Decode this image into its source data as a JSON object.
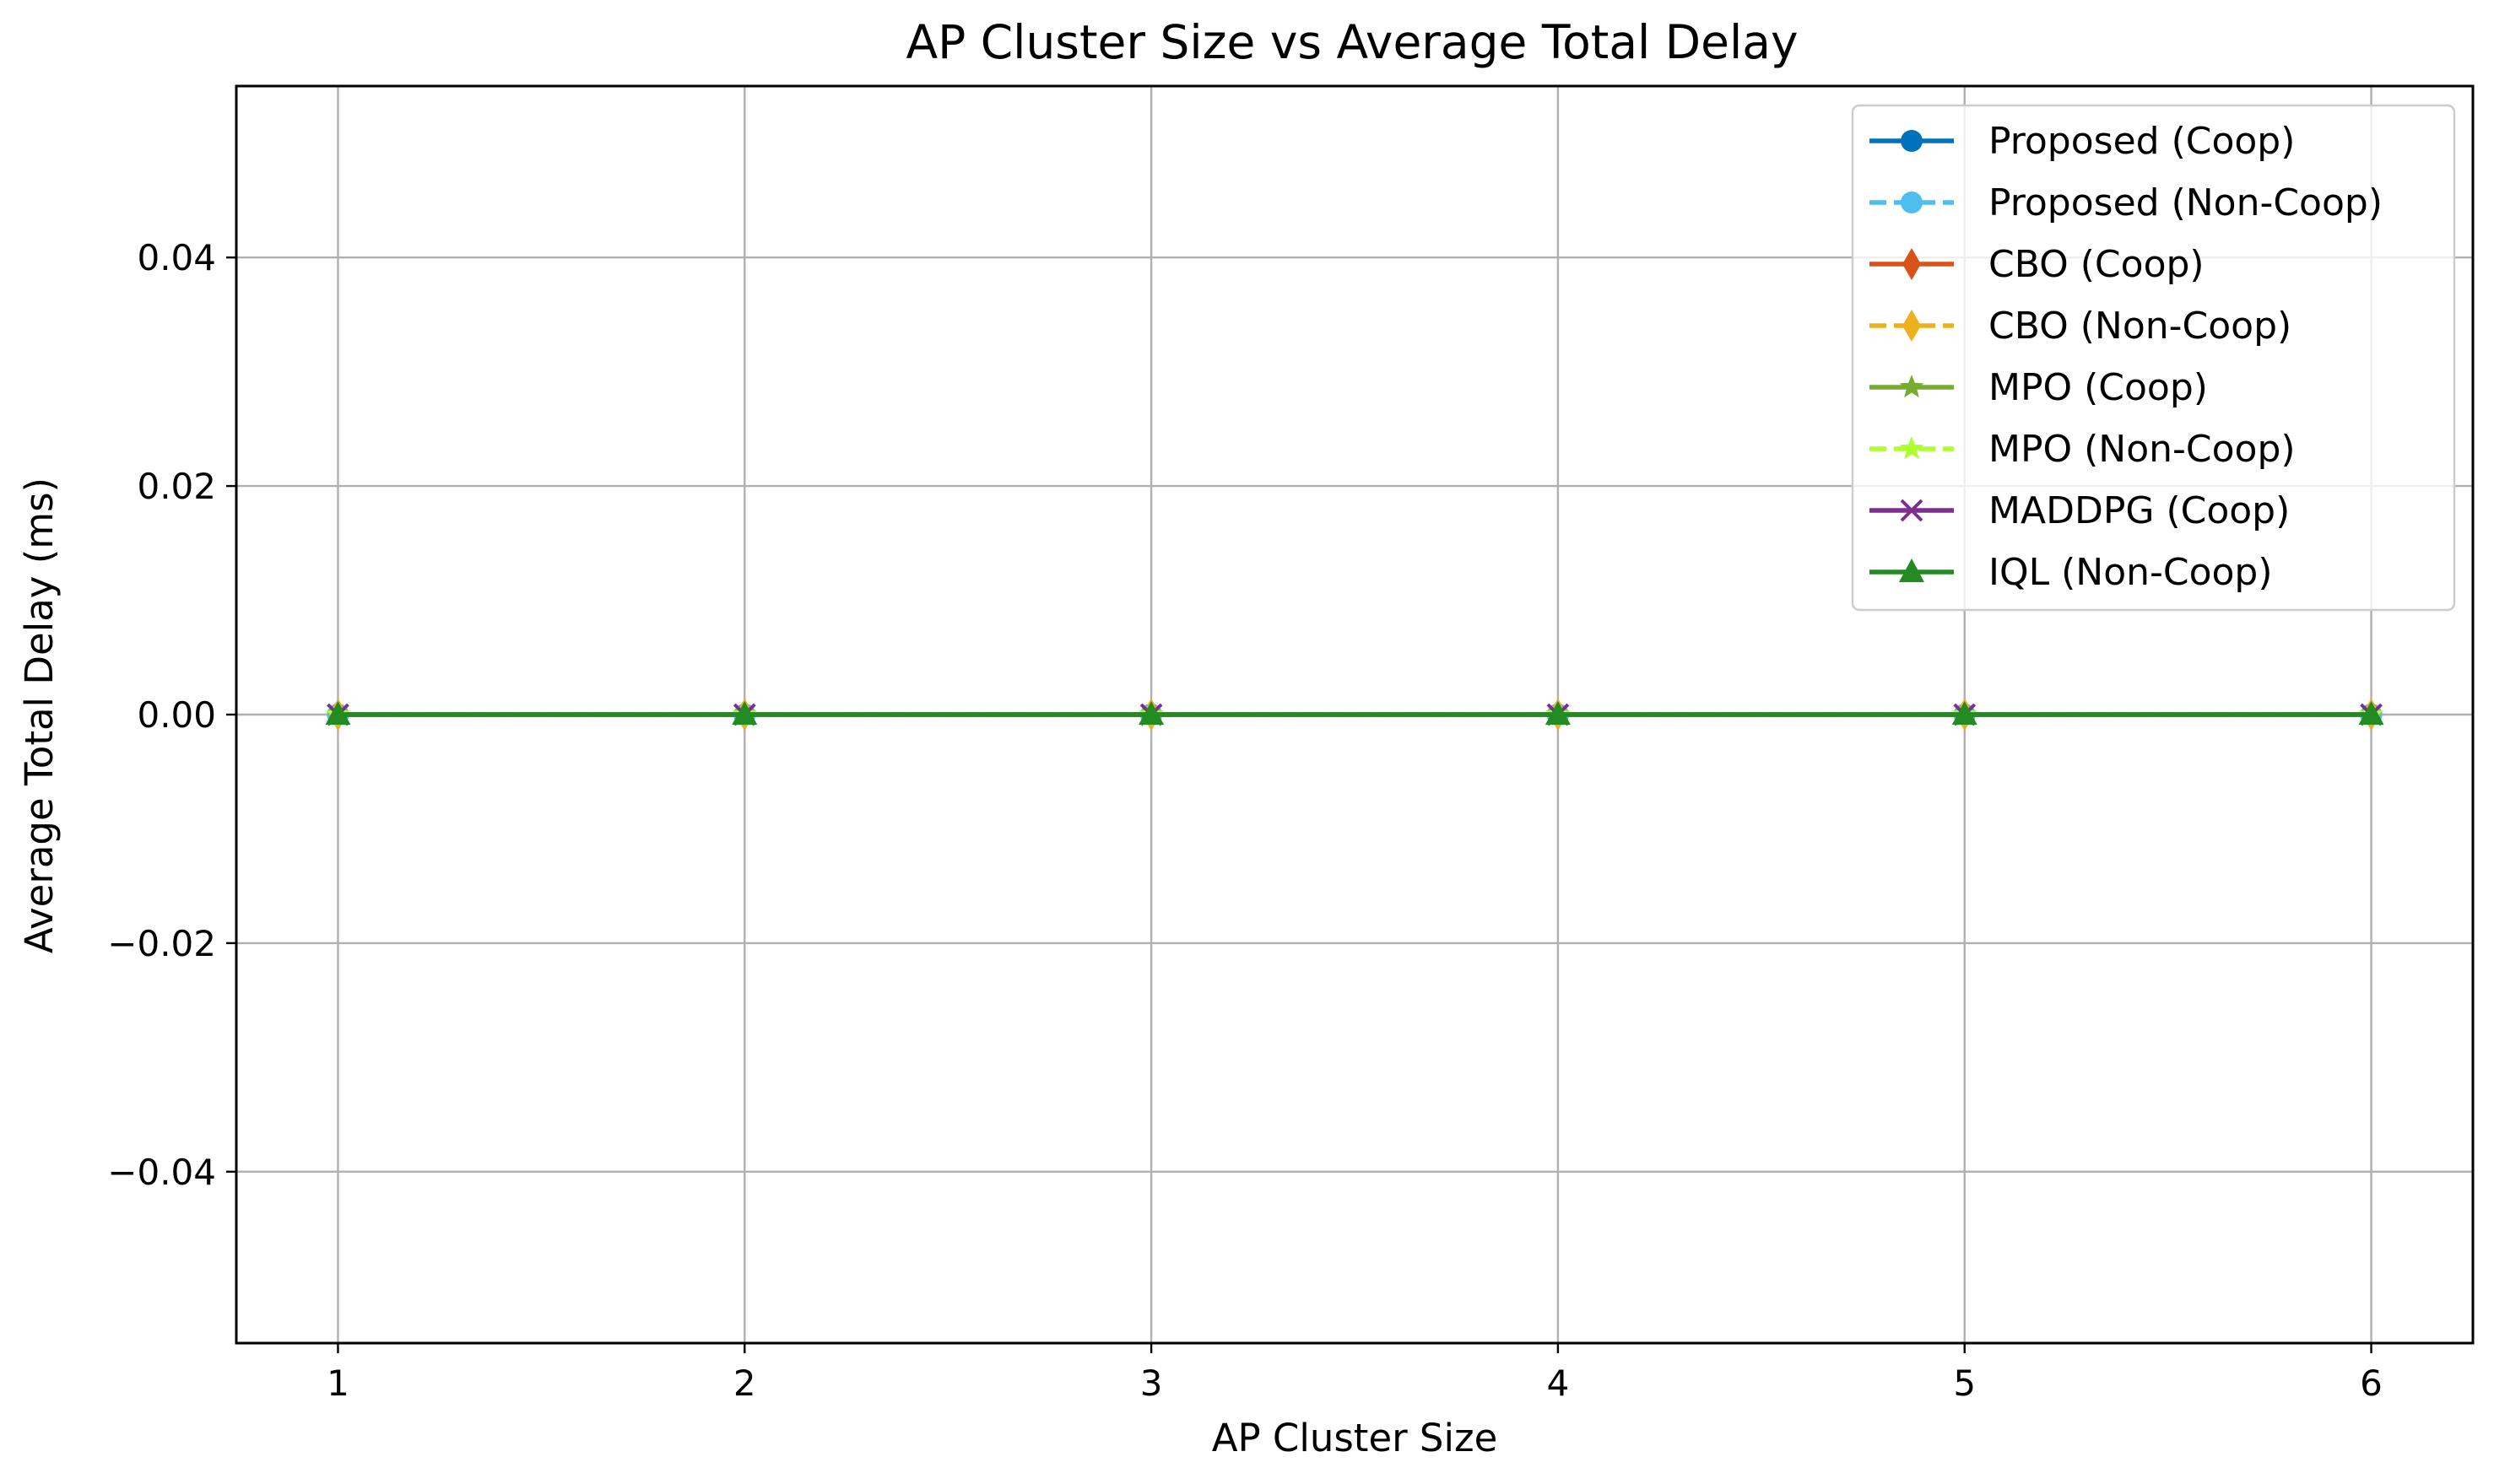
{
  "chart_data": {
    "type": "line",
    "title": "AP Cluster Size vs Average Total Delay",
    "xlabel": "AP Cluster Size",
    "ylabel": "Average Total Delay (ms)",
    "x": [
      1,
      2,
      3,
      4,
      5,
      6
    ],
    "xlim": [
      0.75,
      6.25
    ],
    "ylim": [
      -0.055,
      0.055
    ],
    "xticks": [
      1,
      2,
      3,
      4,
      5,
      6
    ],
    "xtick_labels": [
      "1",
      "2",
      "3",
      "4",
      "5",
      "6"
    ],
    "yticks": [
      -0.04,
      -0.02,
      0.0,
      0.02,
      0.04
    ],
    "ytick_labels": [
      "−0.04",
      "−0.02",
      "0.00",
      "0.02",
      "0.04"
    ],
    "grid": true,
    "legend_position": "top-right",
    "series": [
      {
        "name": "Proposed (Coop)",
        "values": [
          0,
          0,
          0,
          0,
          0,
          0
        ],
        "color": "#0072BD",
        "dash": "solid",
        "marker": "circle"
      },
      {
        "name": "Proposed (Non-Coop)",
        "values": [
          0,
          0,
          0,
          0,
          0,
          0
        ],
        "color": "#4DBEEE",
        "dash": "dashed",
        "marker": "circle"
      },
      {
        "name": "CBO (Coop)",
        "values": [
          0,
          0,
          0,
          0,
          0,
          0
        ],
        "color": "#D95319",
        "dash": "solid",
        "marker": "thin-diamond"
      },
      {
        "name": "CBO (Non-Coop)",
        "values": [
          0,
          0,
          0,
          0,
          0,
          0
        ],
        "color": "#EDB120",
        "dash": "dashed",
        "marker": "thin-diamond"
      },
      {
        "name": "MPO (Coop)",
        "values": [
          0,
          0,
          0,
          0,
          0,
          0
        ],
        "color": "#77AC30",
        "dash": "solid",
        "marker": "star"
      },
      {
        "name": "MPO (Non-Coop)",
        "values": [
          0,
          0,
          0,
          0,
          0,
          0
        ],
        "color": "#ADFF2F",
        "dash": "dashed",
        "marker": "star"
      },
      {
        "name": "MADDPG (Coop)",
        "values": [
          0,
          0,
          0,
          0,
          0,
          0
        ],
        "color": "#7E2F8E",
        "dash": "solid",
        "marker": "x"
      },
      {
        "name": "IQL (Non-Coop)",
        "values": [
          0,
          0,
          0,
          0,
          0,
          0
        ],
        "color": "#228B22",
        "dash": "solid",
        "marker": "triangle-up"
      }
    ]
  }
}
